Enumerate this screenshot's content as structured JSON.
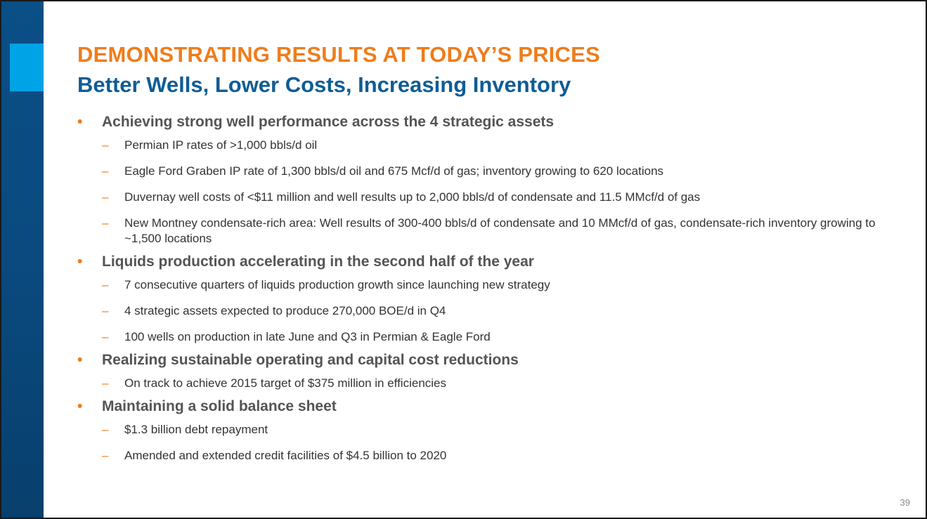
{
  "slide": {
    "title": "DEMONSTRATING RESULTS AT TODAY’S PRICES",
    "subtitle": "Better Wells, Lower Costs, Increasing Inventory",
    "page_number": "39",
    "colors": {
      "title": "#ee7d1c",
      "subtitle": "#0e5d96",
      "sidebar": "#0a4f86",
      "sidebar_accent": "#00a3e6"
    },
    "bullet_marker": "•",
    "sub_marker": "–",
    "bullets": [
      {
        "text": "Achieving strong well performance across the 4 strategic assets",
        "subs": [
          "Permian IP rates of >1,000 bbls/d oil",
          "Eagle Ford Graben IP rate of 1,300 bbls/d oil and 675 Mcf/d of gas; inventory growing to 620 locations",
          "Duvernay well costs of <$11 million and well results up to 2,000 bbls/d of condensate and 11.5 MMcf/d of gas",
          "New Montney condensate-rich area: Well results of 300-400 bbls/d of condensate and 10 MMcf/d of gas, condensate-rich inventory growing to ~1,500 locations"
        ]
      },
      {
        "text": "Liquids production accelerating in the second half of the year",
        "subs": [
          "7 consecutive quarters of liquids production growth since launching new strategy",
          "4 strategic assets expected to produce 270,000 BOE/d in Q4",
          "100 wells on production in late June and Q3 in Permian & Eagle Ford"
        ]
      },
      {
        "text": "Realizing sustainable operating and capital cost reductions",
        "subs": [
          "On track to achieve 2015 target of $375 million in efficiencies"
        ]
      },
      {
        "text": "Maintaining a solid balance sheet",
        "subs": [
          "$1.3 billion debt repayment",
          "Amended and extended credit facilities of $4.5 billion to 2020"
        ]
      }
    ]
  }
}
